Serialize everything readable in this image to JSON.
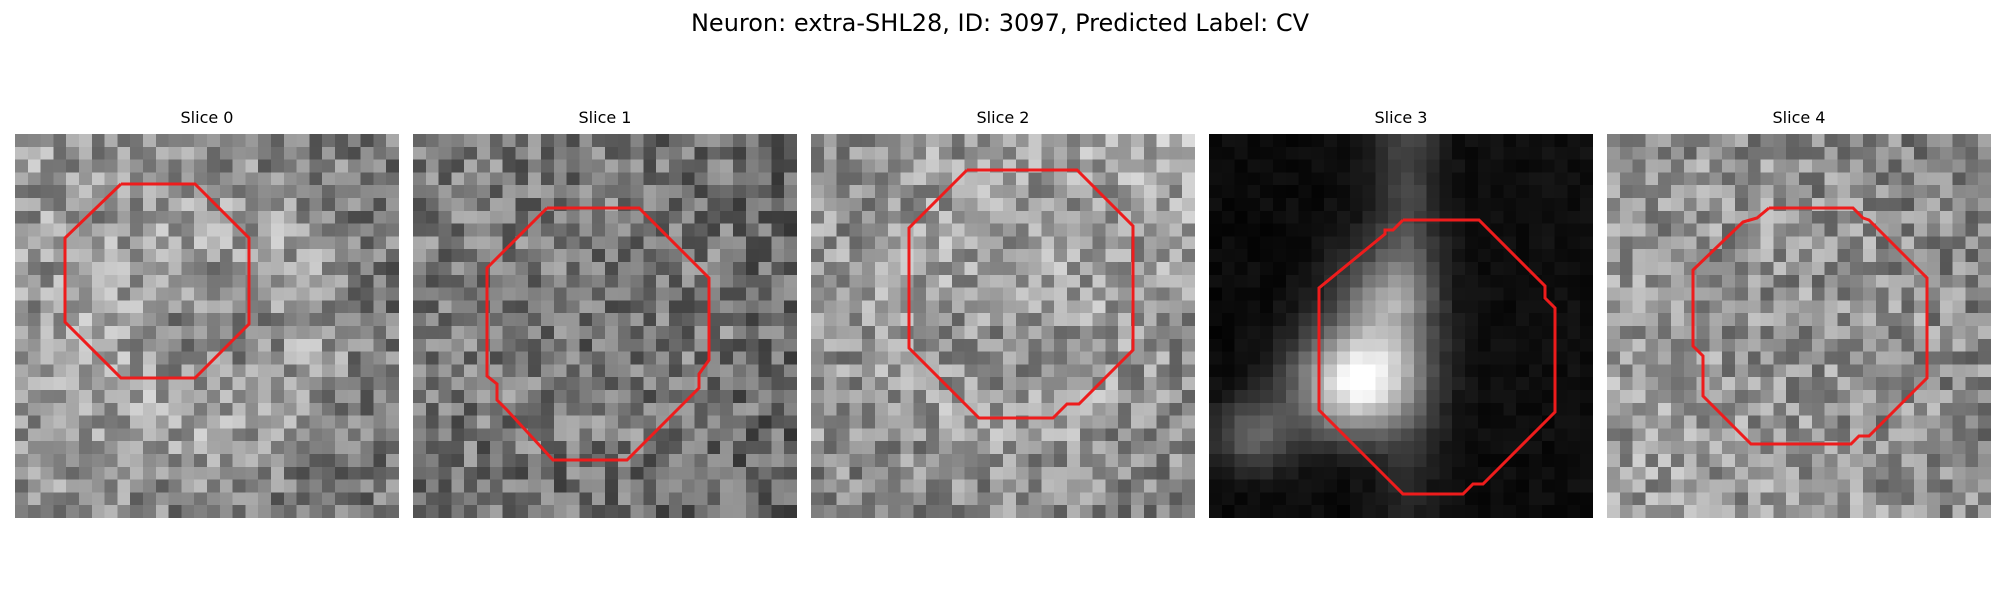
{
  "figure": {
    "title": "Neuron: extra-SHL28, ID: 3097, Predicted Label: CV",
    "contour_color": "#ee1c1c"
  },
  "panels": [
    {
      "title": "Slice 0",
      "style": "noisy_gray",
      "seed": 11,
      "brightness": [
        0.62,
        0.48,
        0.58,
        0.46,
        0.7,
        0.44
      ]
    },
    {
      "title": "Slice 1",
      "style": "noisy_gray",
      "seed": 23,
      "brightness": [
        0.5,
        0.42,
        0.46,
        0.4,
        0.52,
        0.4
      ]
    },
    {
      "title": "Slice 2",
      "style": "noisy_gray",
      "seed": 37,
      "brightness": [
        0.58,
        0.66,
        0.56,
        0.5,
        0.66,
        0.48
      ]
    },
    {
      "title": "Slice 3",
      "style": "dark_blob",
      "seed": 41,
      "brightness": [
        0.04,
        0.06,
        0.03,
        0.05,
        0.1,
        0.03
      ]
    },
    {
      "title": "Slice 4",
      "style": "noisy_gray",
      "seed": 53,
      "brightness": [
        0.6,
        0.5,
        0.62,
        0.56,
        0.58,
        0.5
      ]
    }
  ]
}
